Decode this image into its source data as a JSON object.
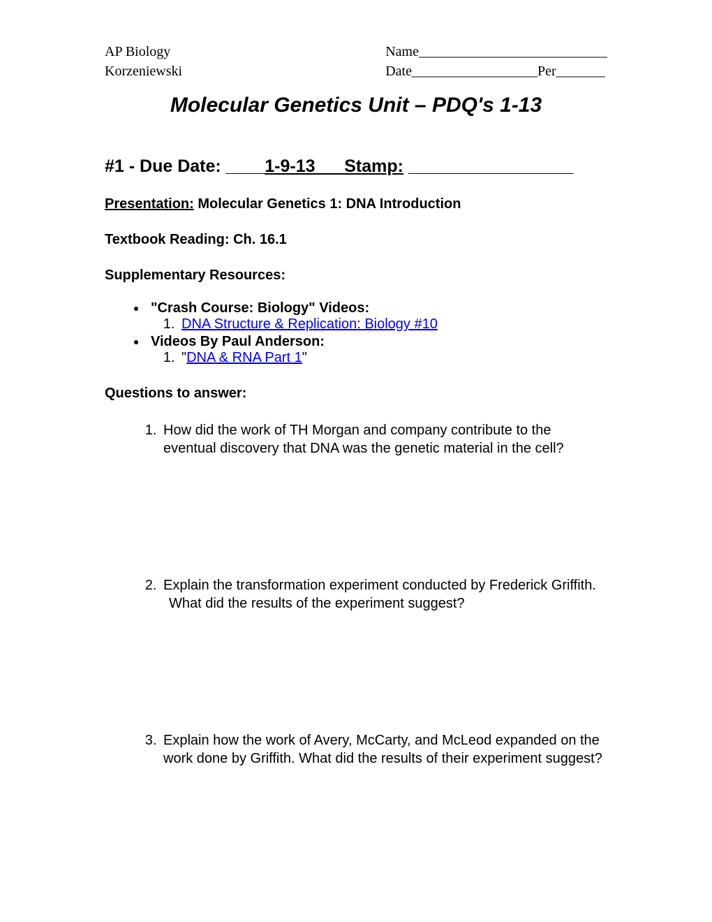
{
  "header": {
    "course": "AP Biology",
    "teacher": "Korzeniewski",
    "name_label": "Name",
    "name_blank": "___________________________",
    "date_label": "Date",
    "date_blank": "__________________",
    "per_label": "Per",
    "per_blank": "_______"
  },
  "title": "Molecular Genetics Unit – PDQ's 1-13",
  "section1": {
    "prefix": "#1 - Due Date:  ____",
    "date": "1-9-13",
    "stamp_prefix": "___Stamp:",
    "stamp_blank": "  _________________"
  },
  "presentation": {
    "label": "Presentation:",
    "text": "  Molecular Genetics 1:  DNA Introduction"
  },
  "textbook": "Textbook Reading:  Ch. 16.1",
  "supplementary_label": "Supplementary Resources:",
  "resources": {
    "item1": {
      "label": "Crash Course: Biology\" Videos:",
      "link1": "DNA Structure & Replication: Biology #10"
    },
    "item2": {
      "label": "Videos By Paul Anderson:",
      "link1": "DNA & RNA Part 1"
    }
  },
  "questions_label": "Questions to answer:",
  "questions": {
    "q1": "How did the work of TH Morgan and company contribute to the eventual discovery that DNA was the genetic material in the cell?",
    "q2_line1": "Explain the transformation experiment conducted by Frederick Griffith.",
    "q2_line2": "What did the results of the experiment suggest?",
    "q3": "Explain how the work of Avery, McCarty, and McLeod expanded on the work done by Griffith.  What did the results of their experiment suggest?"
  }
}
